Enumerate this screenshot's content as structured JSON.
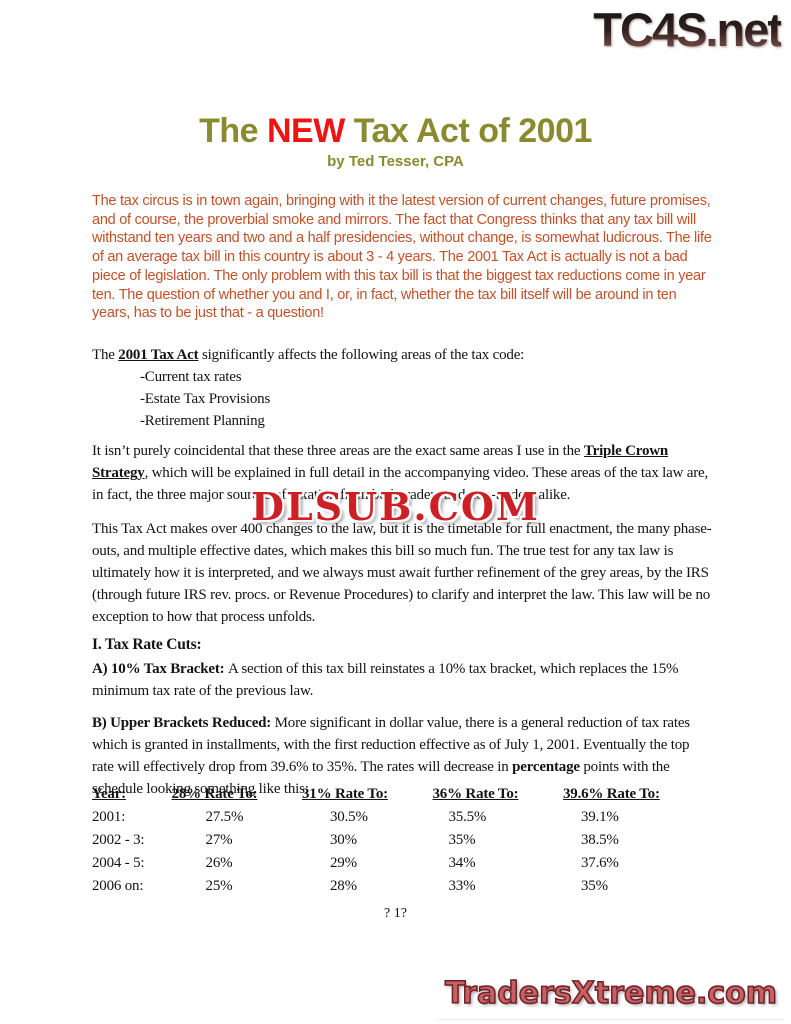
{
  "colors": {
    "title_olive": "#8a8b2f",
    "title_red": "#ee1414",
    "intro_orange": "#c2512a",
    "watermark_red": "#cc1f26",
    "footer_red": "#c75f63",
    "footer_outline": "#6d2127"
  },
  "page": {
    "header_logo": "TC4S.net",
    "title_segments": [
      {
        "t": "The ",
        "s": "olive"
      },
      {
        "t": "NEW",
        "s": "red"
      },
      {
        "t": " Tax Act of 2001",
        "s": "olive"
      }
    ],
    "byline": "by Ted Tesser, CPA",
    "intro": "The tax circus is in town again, bringing with it the latest version of current changes, future promises, and of course, the proverbial smoke and mirrors. The fact that Congress thinks that any tax bill will withstand ten years and two and a half presidencies, without change, is somewhat ludicrous. The life of an average tax bill in this country is about 3 - 4 years. The 2001 Tax Act is actually is not a bad piece of legislation. The only problem with this tax bill is that the biggest tax reductions come in year ten. The question of whether you and I, or, in fact, whether the tax bill itself will be around in ten years, has to be just that - a question!",
    "affects_segments": [
      {
        "t": "The ",
        "s": "n"
      },
      {
        "t": "2001 Tax Act",
        "s": "bu"
      },
      {
        "t": " significantly affects the following areas of the tax code:",
        "s": "n"
      }
    ],
    "bullets": [
      "-Current tax rates",
      "-Estate Tax Provisions",
      "-Retirement Planning"
    ],
    "coincidental_segments": [
      {
        "t": "It isn’t purely coincidental that these three areas are the exact same areas I use in the ",
        "s": "n"
      },
      {
        "t": "Triple Crown Strategy",
        "s": "bu"
      },
      {
        "t": ", which will be explained in full detail in the accompanying video. These areas of the tax law are, in fact, the three major sources of taxation from both traders and non-traders alike.",
        "s": "n"
      }
    ],
    "watermark": "DLSUB.COM",
    "changes_paragraph": "This Tax Act makes over 400 changes to the law, but it is the timetable for full enactment, the many phase-outs, and multiple effective dates, which makes this bill so much fun. The true test for any tax law is ultimately how it is interpreted, and we always must await further refinement of the grey areas, by the IRS (through future IRS rev. procs. or Revenue Procedures) to clarify and interpret the law. This law will be no exception to how that process unfolds.",
    "section_heading": "I.  Tax Rate Cuts:",
    "bracket_a_segments": [
      {
        "t": "A) 10% Tax Bracket: ",
        "s": "b"
      },
      {
        "t": "A section of this tax bill reinstates a 10% tax bracket, which replaces the 15% minimum tax rate of the previous law.",
        "s": "n"
      }
    ],
    "bracket_b_segments": [
      {
        "t": "B) Upper Brackets Reduced: ",
        "s": "b"
      },
      {
        "t": "More significant in dollar value, there is a general reduction of tax rates which is granted in installments, with the first reduction effective as of July 1, 2001. Eventually the top rate will effectively drop from 39.6% to 35%.  The rates will decrease in ",
        "s": "n"
      },
      {
        "t": "percentage",
        "s": "b"
      },
      {
        "t": " points with the schedule looking something like this:",
        "s": "n"
      }
    ],
    "rates_table": {
      "headers": [
        "Year:",
        "28% Rate To:",
        "31% Rate To:",
        "36% Rate To:",
        "39.6% Rate To:"
      ],
      "rows": [
        [
          "2001:",
          "27.5%",
          "30.5%",
          "35.5%",
          "39.1%"
        ],
        [
          "2002 - 3:",
          "27%",
          "30%",
          "35%",
          "38.5%"
        ],
        [
          "2004 - 5:",
          "26%",
          "29%",
          "34%",
          "37.6%"
        ],
        [
          "2006 on:",
          "25%",
          "28%",
          "33%",
          "35%"
        ]
      ]
    },
    "page_number": "? 1?",
    "footer_logo": "TradersXtreme.com"
  }
}
